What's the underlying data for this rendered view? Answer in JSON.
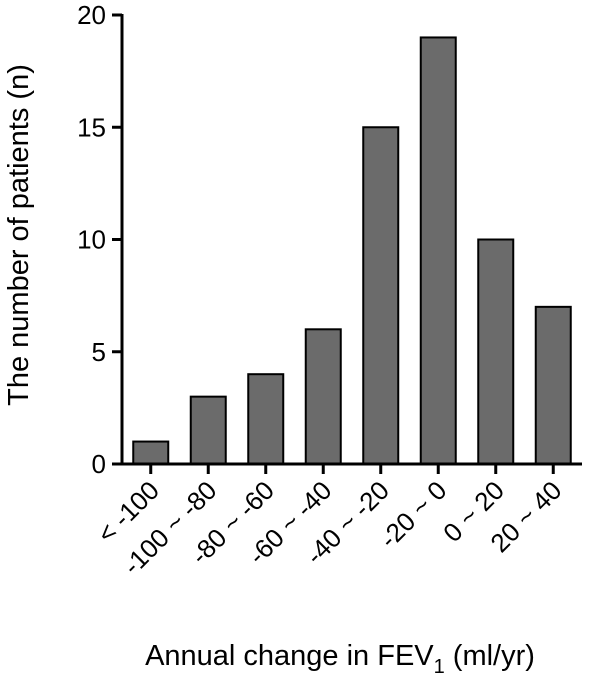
{
  "chart_data": {
    "type": "bar",
    "categories": [
      "< -100",
      "-100 ~ -80",
      "-80 ~ -60",
      "-60 ~ -40",
      "-40 ~ -20",
      "-20 ~ 0",
      "0 ~ 20",
      "20 ~ 40"
    ],
    "values": [
      1,
      3,
      4,
      6,
      15,
      19,
      10,
      7
    ],
    "color": "#6b6b6b",
    "ylim": [
      0,
      20
    ],
    "yticks": [
      0,
      5,
      10,
      15,
      20
    ],
    "y_label": "The number of patients (n)",
    "x_label": [
      "Annual change in FEV",
      "1",
      "(ml/yr)"
    ]
  }
}
